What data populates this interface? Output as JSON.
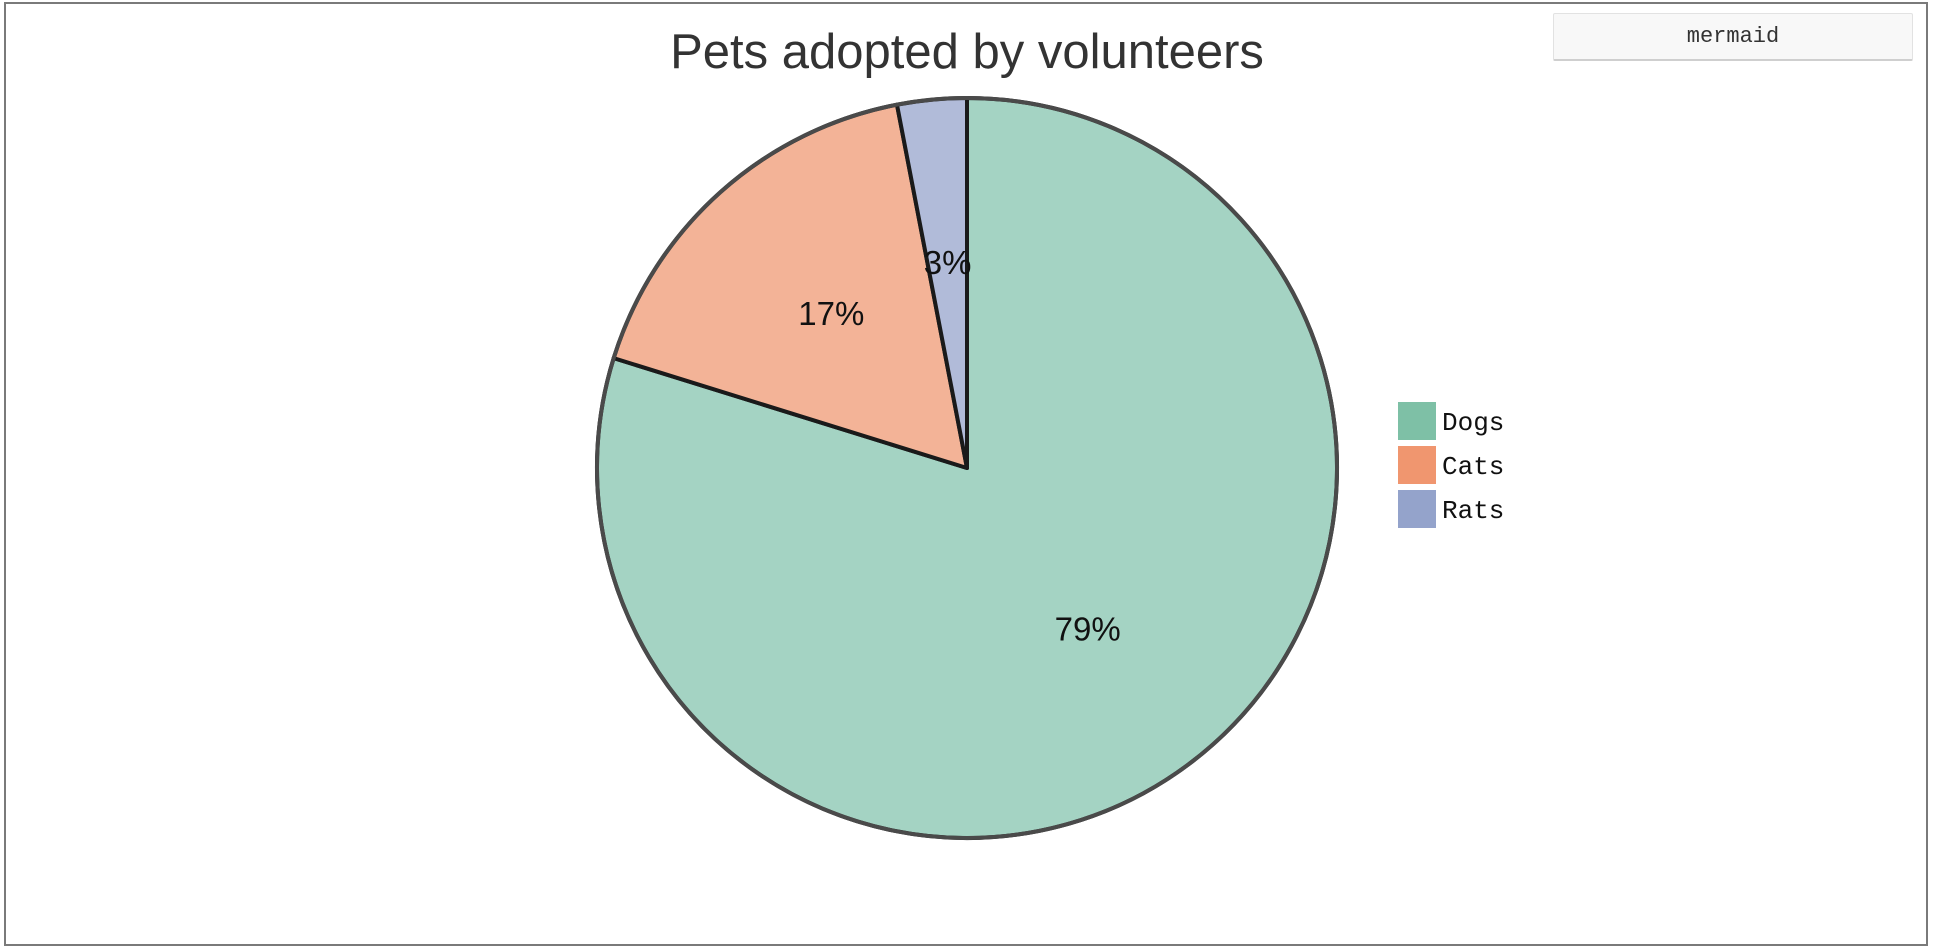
{
  "ui": {
    "mermaid_tab_label": "mermaid"
  },
  "chart_data": {
    "type": "pie",
    "title": "Pets adopted by volunteers",
    "slices": [
      {
        "label": "Dogs",
        "value": 79,
        "display": "79%",
        "color": "#a4d3c3",
        "legend_color": "#7ec0a6"
      },
      {
        "label": "Cats",
        "value": 17,
        "display": "17%",
        "color": "#f3b397",
        "legend_color": "#f0966f"
      },
      {
        "label": "Rats",
        "value": 3,
        "display": "3%",
        "color": "#b1bbd9",
        "legend_color": "#94a3cb"
      }
    ],
    "start_angle_deg": 0,
    "direction": "clockwise",
    "legend_position": "right"
  }
}
